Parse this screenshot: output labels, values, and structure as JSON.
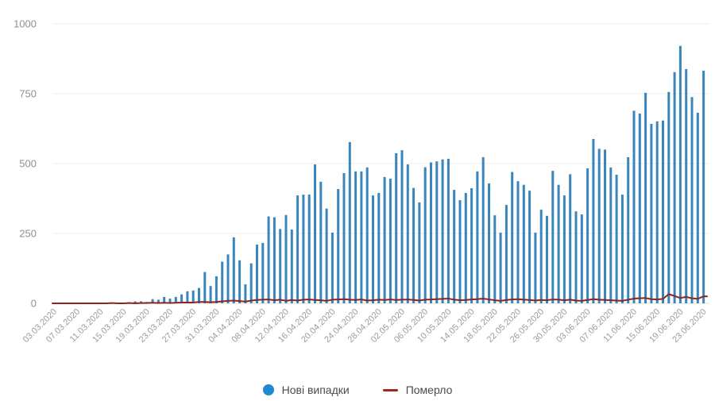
{
  "chart_data": {
    "type": "bar",
    "title": "",
    "xlabel": "",
    "ylabel": "",
    "ylim": [
      0,
      1000
    ],
    "y_ticks": [
      0,
      250,
      500,
      750,
      1000
    ],
    "grid": "horizontal",
    "legend_position": "bottom-center",
    "x_tick_labels": [
      "03.03.2020",
      "07.03.2020",
      "11.03.2020",
      "15.03.2020",
      "19.03.2020",
      "23.03.2020",
      "27.03.2020",
      "31.03.2020",
      "04.04.2020",
      "08.04.2020",
      "12.04.2020",
      "16.04.2020",
      "20.04.2020",
      "24.04.2020",
      "28.04.2020",
      "02.05.2020",
      "06.05.2020",
      "10.05.2020",
      "14.05.2020",
      "18.05.2020",
      "22.05.2020",
      "26.05.2020",
      "30.05.2020",
      "03.06.2020",
      "07.06.2020",
      "11.06.2020",
      "15.06.2020",
      "19.06.2020",
      "23.06.2020"
    ],
    "dates": [
      "03.03.2020",
      "04.03.2020",
      "05.03.2020",
      "06.03.2020",
      "07.03.2020",
      "08.03.2020",
      "09.03.2020",
      "10.03.2020",
      "11.03.2020",
      "12.03.2020",
      "13.03.2020",
      "14.03.2020",
      "15.03.2020",
      "16.03.2020",
      "17.03.2020",
      "18.03.2020",
      "19.03.2020",
      "20.03.2020",
      "21.03.2020",
      "22.03.2020",
      "23.03.2020",
      "24.03.2020",
      "25.03.2020",
      "26.03.2020",
      "27.03.2020",
      "28.03.2020",
      "29.03.2020",
      "30.03.2020",
      "31.03.2020",
      "01.04.2020",
      "02.04.2020",
      "03.04.2020",
      "04.04.2020",
      "05.04.2020",
      "06.04.2020",
      "07.04.2020",
      "08.04.2020",
      "09.04.2020",
      "10.04.2020",
      "11.04.2020",
      "12.04.2020",
      "13.04.2020",
      "14.04.2020",
      "15.04.2020",
      "16.04.2020",
      "17.04.2020",
      "18.04.2020",
      "19.04.2020",
      "20.04.2020",
      "21.04.2020",
      "22.04.2020",
      "23.04.2020",
      "24.04.2020",
      "25.04.2020",
      "26.04.2020",
      "27.04.2020",
      "28.04.2020",
      "29.04.2020",
      "30.04.2020",
      "01.05.2020",
      "02.05.2020",
      "03.05.2020",
      "04.05.2020",
      "05.05.2020",
      "06.05.2020",
      "07.05.2020",
      "08.05.2020",
      "09.05.2020",
      "10.05.2020",
      "11.05.2020",
      "12.05.2020",
      "13.05.2020",
      "14.05.2020",
      "15.05.2020",
      "16.05.2020",
      "17.05.2020",
      "18.05.2020",
      "19.05.2020",
      "20.05.2020",
      "21.05.2020",
      "22.05.2020",
      "23.05.2020",
      "24.05.2020",
      "25.05.2020",
      "26.05.2020",
      "27.05.2020",
      "28.05.2020",
      "29.05.2020",
      "30.05.2020",
      "31.05.2020",
      "01.06.2020",
      "02.06.2020",
      "03.06.2020",
      "04.06.2020",
      "05.06.2020",
      "06.06.2020",
      "07.06.2020",
      "08.06.2020",
      "09.06.2020",
      "10.06.2020",
      "11.06.2020",
      "12.06.2020",
      "13.06.2020",
      "14.06.2020",
      "15.06.2020",
      "16.06.2020",
      "17.06.2020",
      "18.06.2020",
      "19.06.2020",
      "20.06.2020",
      "21.06.2020",
      "22.06.2020",
      "23.06.2020"
    ],
    "series": [
      {
        "name": "Нові випадки",
        "type": "bar",
        "color": "#3886bb",
        "values": [
          1,
          0,
          0,
          0,
          0,
          0,
          0,
          0,
          0,
          1,
          2,
          1,
          0,
          4,
          7,
          7,
          5,
          15,
          13,
          23,
          17,
          23,
          32,
          43,
          46,
          55,
          112,
          62,
          97,
          149,
          175,
          236,
          154,
          68,
          143,
          210,
          216,
          311,
          308,
          266,
          316,
          264,
          386,
          389,
          389,
          497,
          435,
          339,
          253,
          409,
          466,
          577,
          472,
          472,
          486,
          386,
          395,
          452,
          446,
          537,
          548,
          497,
          413,
          361,
          487,
          504,
          508,
          515,
          517,
          406,
          369,
          395,
          412,
          472,
          523,
          429,
          315,
          253,
          352,
          470,
          437,
          424,
          403,
          253,
          335,
          313,
          474,
          424,
          386,
          462,
          329,
          318,
          483,
          588,
          553,
          550,
          486,
          460,
          389,
          523,
          689,
          679,
          753,
          642,
          651,
          654,
          756,
          827,
          921,
          838,
          738,
          682,
          832
        ]
      },
      {
        "name": "Померло",
        "type": "line",
        "color": "#8e2420",
        "values": [
          0,
          0,
          0,
          0,
          0,
          0,
          0,
          0,
          0,
          0,
          1,
          0,
          0,
          1,
          0,
          1,
          1,
          2,
          1,
          2,
          1,
          2,
          3,
          3,
          3,
          5,
          5,
          4,
          5,
          7,
          9,
          10,
          8,
          6,
          10,
          12,
          13,
          14,
          11,
          13,
          9,
          12,
          10,
          13,
          14,
          12,
          11,
          9,
          13,
          14,
          15,
          13,
          12,
          14,
          10,
          11,
          13,
          12,
          14,
          12,
          13,
          14,
          12,
          10,
          13,
          14,
          15,
          16,
          17,
          13,
          11,
          12,
          14,
          15,
          17,
          14,
          11,
          9,
          12,
          14,
          15,
          13,
          12,
          10,
          12,
          11,
          14,
          13,
          11,
          13,
          10,
          9,
          12,
          15,
          13,
          12,
          11,
          10,
          9,
          13,
          17,
          18,
          19,
          15,
          14,
          16,
          33,
          26,
          19,
          23,
          18,
          16,
          25
        ]
      }
    ]
  },
  "legend": {
    "items": [
      {
        "label": "Нові випадки",
        "swatch": "circle",
        "color": "#1e8bd1"
      },
      {
        "label": "Померло",
        "swatch": "line",
        "color": "#9c2a24"
      }
    ]
  },
  "style": {
    "grid_color": "#ececec",
    "zero_line_color": "#e0e0e0",
    "y_label_color": "#8f8f8f",
    "x_label_color": "#9c9c9c"
  }
}
